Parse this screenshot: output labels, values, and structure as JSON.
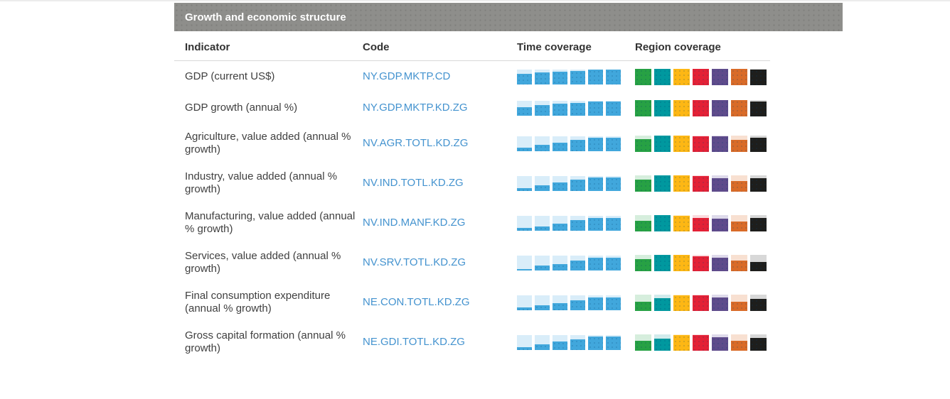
{
  "panel": {
    "title": "Growth and economic structure"
  },
  "table": {
    "headers": {
      "indicator": "Indicator",
      "code": "Code",
      "time": "Time coverage",
      "region": "Region coverage"
    },
    "colors": {
      "title_bar_bg": "#8e8e8b",
      "code_link": "#4493cf",
      "time_fill": "#41a7dc",
      "time_bg": "#d9edf9",
      "region_palette": [
        {
          "name": "green",
          "fill": "#27a144",
          "bg": "#d6eedd"
        },
        {
          "name": "teal",
          "fill": "#00989f",
          "bg": "#d2ebec"
        },
        {
          "name": "yellow",
          "fill": "#fdb714",
          "bg": "#fef0ce"
        },
        {
          "name": "red",
          "fill": "#e32136",
          "bg": "#fadbde"
        },
        {
          "name": "purple",
          "fill": "#5e4b8b",
          "bg": "#dedaea"
        },
        {
          "name": "orange",
          "fill": "#d96b28",
          "bg": "#f8e0d1"
        },
        {
          "name": "black",
          "fill": "#1e1e1c",
          "bg": "#d8d8d8"
        }
      ]
    },
    "rows": [
      {
        "indicator": "GDP (current US$)",
        "code": "NY.GDP.MKTP.CD",
        "time_fill_fractions": [
          0.7,
          0.78,
          0.82,
          0.88,
          0.97,
          0.97
        ],
        "region_fill_fractions": [
          1,
          1,
          1,
          1,
          1,
          1,
          0.92
        ]
      },
      {
        "indicator": "GDP growth (annual %)",
        "code": "NY.GDP.MKTP.KD.ZG",
        "time_fill_fractions": [
          0.55,
          0.7,
          0.8,
          0.85,
          0.95,
          0.95
        ],
        "region_fill_fractions": [
          1,
          1,
          1,
          1,
          1,
          1,
          0.9
        ]
      },
      {
        "indicator": "Agriculture, value added (annual % growth)",
        "code": "NV.AGR.TOTL.KD.ZG",
        "time_fill_fractions": [
          0.2,
          0.42,
          0.55,
          0.72,
          0.9,
          0.9
        ],
        "region_fill_fractions": [
          0.78,
          1,
          1,
          0.95,
          0.95,
          0.72,
          0.85
        ]
      },
      {
        "indicator": "Industry, value added (annual % growth)",
        "code": "NV.IND.TOTL.KD.ZG",
        "time_fill_fractions": [
          0.15,
          0.35,
          0.55,
          0.75,
          0.9,
          0.9
        ],
        "region_fill_fractions": [
          0.72,
          1,
          1,
          0.92,
          0.82,
          0.65,
          0.82
        ]
      },
      {
        "indicator": "Manufacturing, value added (annual % growth)",
        "code": "NV.IND.MANF.KD.ZG",
        "time_fill_fractions": [
          0.15,
          0.28,
          0.45,
          0.68,
          0.85,
          0.85
        ],
        "region_fill_fractions": [
          0.65,
          1,
          0.95,
          0.82,
          0.78,
          0.6,
          0.8
        ]
      },
      {
        "indicator": "Services, value added (annual % growth)",
        "code": "NV.SRV.TOTL.KD.ZG",
        "time_fill_fractions": [
          0.08,
          0.3,
          0.42,
          0.62,
          0.85,
          0.85
        ],
        "region_fill_fractions": [
          0.72,
          1,
          1,
          0.9,
          0.8,
          0.65,
          0.55
        ]
      },
      {
        "indicator": "Final consumption expenditure (annual % growth)",
        "code": "NE.CON.TOTL.KD.ZG",
        "time_fill_fractions": [
          0.18,
          0.33,
          0.45,
          0.65,
          0.85,
          0.85
        ],
        "region_fill_fractions": [
          0.55,
          0.75,
          0.95,
          0.95,
          0.8,
          0.55,
          0.7
        ]
      },
      {
        "indicator": "Gross capital formation (annual % growth)",
        "code": "NE.GDI.TOTL.KD.ZG",
        "time_fill_fractions": [
          0.18,
          0.35,
          0.55,
          0.7,
          0.88,
          0.88
        ],
        "region_fill_fractions": [
          0.6,
          0.7,
          0.95,
          0.95,
          0.8,
          0.6,
          0.75
        ]
      }
    ]
  }
}
